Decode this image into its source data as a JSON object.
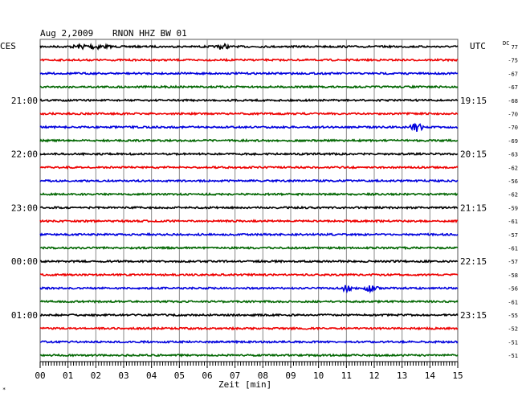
{
  "header": {
    "date": "Aug 2,2009",
    "station": "RNON HHZ BW 01",
    "left_tz": "CES",
    "right_tz": "UTC",
    "dc_label": "DC",
    "xlabel": "Zeit [min]",
    "corner_mark": "*"
  },
  "chart_data": {
    "type": "line",
    "xlabel": "Zeit [min]",
    "xlim": [
      0,
      15
    ],
    "x_ticks": [
      "00",
      "01",
      "02",
      "03",
      "04",
      "05",
      "06",
      "07",
      "08",
      "09",
      "10",
      "11",
      "12",
      "13",
      "14",
      "15"
    ],
    "row_count": 24,
    "row_colors": [
      "#000000",
      "#ee0000",
      "#0000dd",
      "#006600"
    ],
    "left_hour_labels": [
      {
        "row": 4,
        "label": "21:00"
      },
      {
        "row": 8,
        "label": "22:00"
      },
      {
        "row": 12,
        "label": "23:00"
      },
      {
        "row": 16,
        "label": "00:00"
      },
      {
        "row": 20,
        "label": "01:00"
      }
    ],
    "right_time_labels": [
      {
        "row": 4,
        "label": "19:15"
      },
      {
        "row": 8,
        "label": "20:15"
      },
      {
        "row": 12,
        "label": "21:15"
      },
      {
        "row": 16,
        "label": "22:15"
      },
      {
        "row": 20,
        "label": "23:15"
      }
    ],
    "dc_offsets": [
      "77",
      "-75",
      "-67",
      "-67",
      "-68",
      "-70",
      "-70",
      "-69",
      "-63",
      "-62",
      "-56",
      "-62",
      "-59",
      "-61",
      "-57",
      "-61",
      "-57",
      "-58",
      "-56",
      "-61",
      "-55",
      "-52",
      "-51",
      "-51"
    ],
    "events": [
      {
        "row": 0,
        "start_min": 1.0,
        "end_min": 3.3,
        "amplitude": 2.5
      },
      {
        "row": 0,
        "start_min": 6.3,
        "end_min": 7.0,
        "amplitude": 3.0
      },
      {
        "row": 6,
        "start_min": 13.2,
        "end_min": 14.0,
        "amplitude": 6.0
      },
      {
        "row": 18,
        "start_min": 10.8,
        "end_min": 11.4,
        "amplitude": 3.5
      },
      {
        "row": 18,
        "start_min": 11.6,
        "end_min": 12.4,
        "amplitude": 3.5
      }
    ],
    "grid": true
  }
}
